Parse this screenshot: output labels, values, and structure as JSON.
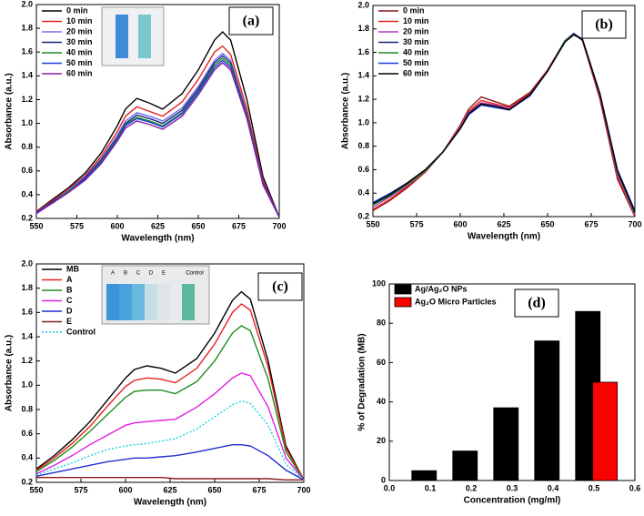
{
  "chart_data": [
    {
      "type": "line",
      "label": "(a)",
      "xlabel": "Wavelength (nm)",
      "ylabel": "Absorbance (a.u.)",
      "legend": "upper left",
      "xlim": [
        550,
        700
      ],
      "xticks": [
        550,
        575,
        600,
        625,
        650,
        675,
        700
      ],
      "ylim": [
        0.2,
        2
      ],
      "yticks": [
        0.2,
        0.4,
        0.6,
        0.8,
        {
          "value": 1,
          "label": "1.0"
        },
        1.2,
        1.4,
        1.6,
        1.8,
        {
          "value": 2,
          "label": "2.0"
        }
      ],
      "x": [
        550,
        560,
        570,
        580,
        590,
        600,
        605,
        612,
        620,
        628,
        640,
        650,
        660,
        665,
        670,
        680,
        690,
        700
      ],
      "series": [
        {
          "name": "0 min",
          "color": "#000000",
          "values": [
            0.26,
            0.36,
            0.46,
            0.58,
            0.75,
            0.98,
            1.12,
            1.21,
            1.17,
            1.12,
            1.25,
            1.45,
            1.7,
            1.77,
            1.7,
            1.2,
            0.55,
            0.21
          ]
        },
        {
          "name": "10 min",
          "color": "#e8201c",
          "values": [
            0.26,
            0.35,
            0.45,
            0.56,
            0.72,
            0.93,
            1.06,
            1.14,
            1.1,
            1.06,
            1.18,
            1.37,
            1.6,
            1.65,
            1.58,
            1.12,
            0.52,
            0.21
          ]
        },
        {
          "name": "20 min",
          "color": "#7b6cf0",
          "values": [
            0.25,
            0.34,
            0.44,
            0.55,
            0.7,
            0.9,
            1.02,
            1.09,
            1.06,
            1.02,
            1.13,
            1.31,
            1.53,
            1.59,
            1.53,
            1.08,
            0.5,
            0.21
          ]
        },
        {
          "name": "30 min",
          "color": "#1a237e",
          "values": [
            0.25,
            0.34,
            0.43,
            0.54,
            0.69,
            0.88,
            1.0,
            1.07,
            1.04,
            1.0,
            1.11,
            1.29,
            1.51,
            1.57,
            1.51,
            1.07,
            0.5,
            0.21
          ]
        },
        {
          "name": "40 min",
          "color": "#1e8c1e",
          "values": [
            0.25,
            0.33,
            0.43,
            0.53,
            0.68,
            0.87,
            0.99,
            1.05,
            1.02,
            0.98,
            1.09,
            1.27,
            1.49,
            1.55,
            1.49,
            1.06,
            0.49,
            0.21
          ]
        },
        {
          "name": "50 min",
          "color": "#1f3fe0",
          "values": [
            0.25,
            0.33,
            0.42,
            0.53,
            0.67,
            0.86,
            0.98,
            1.04,
            1.01,
            0.97,
            1.08,
            1.26,
            1.47,
            1.53,
            1.47,
            1.05,
            0.49,
            0.21
          ]
        },
        {
          "name": "60 min",
          "color": "#8a1fa8",
          "values": [
            0.24,
            0.33,
            0.42,
            0.52,
            0.66,
            0.85,
            0.96,
            1.02,
            0.99,
            0.95,
            1.06,
            1.24,
            1.45,
            1.51,
            1.45,
            1.04,
            0.48,
            0.21
          ]
        }
      ]
    },
    {
      "type": "line",
      "label": "(b)",
      "xlabel": "Wavelength (nm)",
      "ylabel": "Absorbance (a.u.)",
      "legend": "upper left",
      "xlim": [
        550,
        700
      ],
      "xticks": [
        550,
        575,
        600,
        625,
        650,
        675,
        700
      ],
      "ylim": [
        0.2,
        2
      ],
      "yticks": [
        0.2,
        0.4,
        0.6,
        0.8,
        {
          "value": 1,
          "label": "1.0"
        },
        1.2,
        1.4,
        1.6,
        1.8,
        {
          "value": 2,
          "label": "2.0"
        }
      ],
      "x": [
        550,
        560,
        570,
        580,
        590,
        600,
        605,
        612,
        620,
        628,
        640,
        650,
        660,
        665,
        670,
        680,
        690,
        700
      ],
      "series": [
        {
          "name": "0 min",
          "color": "#8b1a1a",
          "values": [
            0.25,
            0.34,
            0.45,
            0.58,
            0.75,
            0.98,
            1.12,
            1.22,
            1.18,
            1.14,
            1.26,
            1.45,
            1.7,
            1.76,
            1.7,
            1.2,
            0.52,
            0.2
          ]
        },
        {
          "name": "10 min",
          "color": "#e8201c",
          "values": [
            0.26,
            0.35,
            0.46,
            0.58,
            0.75,
            0.97,
            1.1,
            1.19,
            1.16,
            1.13,
            1.25,
            1.45,
            1.7,
            1.76,
            1.7,
            1.21,
            0.54,
            0.21
          ]
        },
        {
          "name": "20 min",
          "color": "#b03bbd",
          "values": [
            0.28,
            0.37,
            0.47,
            0.59,
            0.75,
            0.96,
            1.09,
            1.17,
            1.15,
            1.12,
            1.24,
            1.44,
            1.7,
            1.76,
            1.71,
            1.23,
            0.56,
            0.22
          ]
        },
        {
          "name": "30 min",
          "color": "#1a237e",
          "values": [
            0.3,
            0.38,
            0.48,
            0.59,
            0.75,
            0.95,
            1.08,
            1.16,
            1.14,
            1.11,
            1.24,
            1.44,
            1.7,
            1.76,
            1.71,
            1.24,
            0.58,
            0.23
          ]
        },
        {
          "name": "40 min",
          "color": "#1e8c1e",
          "values": [
            0.3,
            0.38,
            0.48,
            0.59,
            0.75,
            0.95,
            1.08,
            1.16,
            1.14,
            1.11,
            1.24,
            1.44,
            1.7,
            1.75,
            1.71,
            1.24,
            0.58,
            0.23
          ]
        },
        {
          "name": "50 min",
          "color": "#1f3fe0",
          "values": [
            0.32,
            0.4,
            0.49,
            0.6,
            0.75,
            0.95,
            1.07,
            1.15,
            1.13,
            1.11,
            1.23,
            1.44,
            1.69,
            1.75,
            1.71,
            1.25,
            0.6,
            0.25
          ]
        },
        {
          "name": "60 min",
          "color": "#000000",
          "values": [
            0.31,
            0.39,
            0.49,
            0.6,
            0.75,
            0.95,
            1.08,
            1.16,
            1.14,
            1.11,
            1.24,
            1.44,
            1.69,
            1.75,
            1.71,
            1.24,
            0.59,
            0.24
          ]
        }
      ]
    },
    {
      "type": "line",
      "label": "(c)",
      "xlabel": "Wavelength (nm)",
      "ylabel": "Absorbance (a.u.)",
      "legend": "upper left",
      "inset_labels": [
        "A",
        "B",
        "C",
        "D",
        "E",
        "Control"
      ],
      "xlim": [
        550,
        700
      ],
      "xticks": [
        550,
        575,
        600,
        625,
        650,
        675,
        700
      ],
      "ylim": [
        0.2,
        2
      ],
      "yticks": [
        0.2,
        0.4,
        0.6,
        0.8,
        {
          "value": 1,
          "label": "1.0"
        },
        1.2,
        1.4,
        1.6,
        1.8,
        {
          "value": 2,
          "label": "2.0"
        }
      ],
      "x": [
        550,
        560,
        570,
        580,
        590,
        600,
        605,
        612,
        620,
        628,
        640,
        650,
        660,
        665,
        670,
        680,
        690,
        700
      ],
      "series": [
        {
          "name": "MB",
          "color": "#000000",
          "values": [
            0.31,
            0.42,
            0.55,
            0.7,
            0.88,
            1.06,
            1.13,
            1.16,
            1.14,
            1.1,
            1.22,
            1.43,
            1.7,
            1.77,
            1.71,
            1.2,
            0.5,
            0.22
          ]
        },
        {
          "name": "A",
          "color": "#e8201c",
          "values": [
            0.3,
            0.4,
            0.52,
            0.66,
            0.83,
            0.99,
            1.04,
            1.06,
            1.05,
            1.02,
            1.14,
            1.34,
            1.6,
            1.67,
            1.62,
            1.15,
            0.48,
            0.22
          ]
        },
        {
          "name": "B",
          "color": "#1e8c1e",
          "values": [
            0.29,
            0.38,
            0.49,
            0.62,
            0.76,
            0.9,
            0.95,
            0.96,
            0.96,
            0.93,
            1.03,
            1.2,
            1.43,
            1.49,
            1.45,
            1.05,
            0.45,
            0.22
          ]
        },
        {
          "name": "C",
          "color": "#e020e0",
          "values": [
            0.27,
            0.34,
            0.42,
            0.51,
            0.59,
            0.67,
            0.69,
            0.7,
            0.71,
            0.72,
            0.82,
            0.93,
            1.06,
            1.1,
            1.08,
            0.82,
            0.4,
            0.22
          ]
        },
        {
          "name": "D",
          "color": "#1f2fd0",
          "values": [
            0.25,
            0.28,
            0.31,
            0.34,
            0.37,
            0.39,
            0.4,
            0.4,
            0.41,
            0.42,
            0.45,
            0.48,
            0.51,
            0.51,
            0.5,
            0.42,
            0.3,
            0.22
          ]
        },
        {
          "name": "E",
          "color": "#8b1a1a",
          "values": [
            0.24,
            0.24,
            0.24,
            0.24,
            0.24,
            0.24,
            0.24,
            0.24,
            0.24,
            0.23,
            0.23,
            0.23,
            0.23,
            0.23,
            0.23,
            0.23,
            0.22,
            0.22
          ]
        },
        {
          "name": "Control",
          "color": "#1ccfe8",
          "dash": "dotted",
          "values": [
            0.26,
            0.31,
            0.36,
            0.42,
            0.47,
            0.5,
            0.51,
            0.52,
            0.54,
            0.56,
            0.64,
            0.74,
            0.84,
            0.87,
            0.85,
            0.67,
            0.35,
            0.22
          ]
        }
      ]
    },
    {
      "type": "bar",
      "label": "(d)",
      "xlabel": "Concentration (mg/ml)",
      "ylabel": "% of Degradation (MB)",
      "legend": "upper left",
      "xlim": [
        0,
        0.6
      ],
      "xticks": [
        {
          "value": 0,
          "label": "0.0"
        },
        0.1,
        0.2,
        0.3,
        0.4,
        0.5,
        0.6
      ],
      "ylim": [
        0,
        100
      ],
      "yticks": [
        0,
        20,
        40,
        60,
        80,
        100
      ],
      "x": [
        0.1,
        0.2,
        0.3,
        0.4,
        0.5
      ],
      "series": [
        {
          "name": "Ag/Ag₂O NPs",
          "color": "#000000",
          "values": [
            5,
            15,
            37,
            71,
            86
          ]
        },
        {
          "name": "Ag₂O Micro Particles",
          "color": "#ff0000",
          "values": [
            null,
            null,
            null,
            null,
            50
          ]
        }
      ]
    }
  ]
}
